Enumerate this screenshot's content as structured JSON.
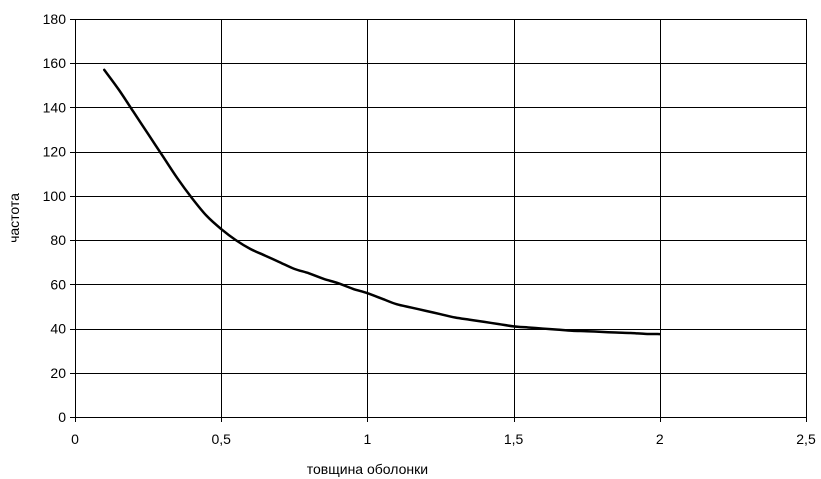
{
  "chart_data": {
    "type": "line",
    "title": "",
    "xlabel": "товщина оболонки",
    "ylabel": "частота",
    "xlim": [
      0,
      2.5
    ],
    "ylim": [
      0,
      180
    ],
    "x_ticks": [
      0,
      0.5,
      1,
      1.5,
      2,
      2.5
    ],
    "x_tick_labels": [
      "0",
      "0,5",
      "1",
      "1,5",
      "2",
      "2,5"
    ],
    "y_ticks": [
      0,
      20,
      40,
      60,
      80,
      100,
      120,
      140,
      160,
      180
    ],
    "y_tick_labels": [
      "0",
      "20",
      "40",
      "60",
      "80",
      "100",
      "120",
      "140",
      "160",
      "180"
    ],
    "grid": true,
    "line_color": "#000000",
    "series": [
      {
        "x": [
          0.1,
          0.15,
          0.2,
          0.25,
          0.3,
          0.35,
          0.4,
          0.45,
          0.5,
          0.55,
          0.6,
          0.65,
          0.7,
          0.75,
          0.8,
          0.85,
          0.9,
          0.95,
          1.0,
          1.05,
          1.1,
          1.15,
          1.2,
          1.25,
          1.3,
          1.35,
          1.4,
          1.45,
          1.5,
          1.55,
          1.6,
          1.65,
          1.7,
          1.75,
          1.8,
          1.85,
          1.9,
          1.95,
          2.0
        ],
        "y": [
          157,
          148,
          138,
          128,
          118,
          108,
          99,
          91,
          85,
          80,
          76,
          73,
          70,
          67,
          65,
          62.5,
          60.5,
          58,
          56,
          53.5,
          51,
          49.5,
          48,
          46.5,
          45,
          44,
          43,
          42,
          41,
          40.5,
          40,
          39.5,
          39,
          38.8,
          38.5,
          38.2,
          38,
          37.6,
          37.5
        ]
      }
    ]
  }
}
